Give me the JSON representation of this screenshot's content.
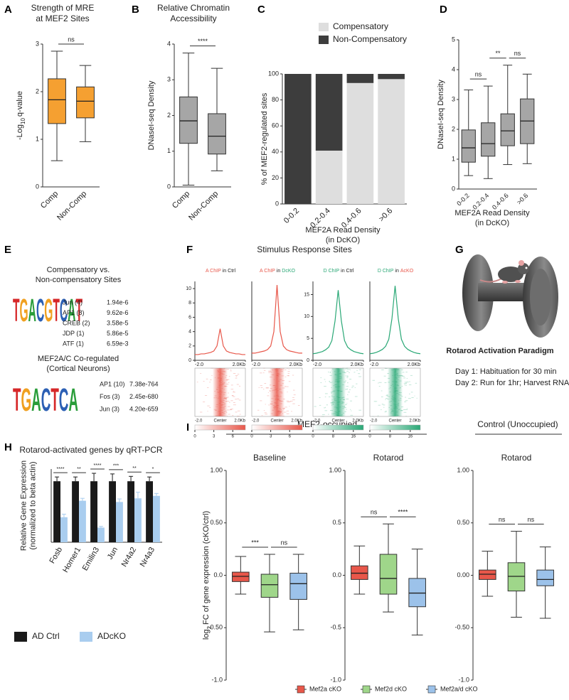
{
  "chart_data": [
    {
      "type": "box",
      "label": "A",
      "title": [
        "Strength of MRE",
        "at MEF2 Sites"
      ],
      "ylabel": [
        [
          {
            "text": "-Log"
          },
          {
            "text": "10",
            "sub": true
          },
          {
            "text": "q-value"
          }
        ]
      ],
      "categories": [
        "Comp",
        "Non-Comp"
      ],
      "boxes": [
        {
          "min": 0.55,
          "q1": 1.33,
          "median": 1.83,
          "q3": 2.27,
          "max": 2.85
        },
        {
          "min": 0.95,
          "q1": 1.45,
          "median": 1.8,
          "q3": 2.1,
          "max": 2.55
        }
      ],
      "color": "#f5a031",
      "ylim": [
        0,
        3
      ],
      "yticks": [
        0,
        1,
        2,
        3
      ],
      "comparisons": [
        "ns"
      ]
    },
    {
      "type": "box",
      "label": "B",
      "title": [
        "Relative Chromatin",
        "Accessibility"
      ],
      "ylabel": [
        "DNaseI-seq Density"
      ],
      "categories": [
        "Comp",
        "Non-Comp"
      ],
      "boxes": [
        {
          "min": 0.05,
          "q1": 1.22,
          "median": 1.85,
          "q3": 2.52,
          "max": 3.75
        },
        {
          "min": 0.45,
          "q1": 0.92,
          "median": 1.42,
          "q3": 2.05,
          "max": 3.32
        }
      ],
      "color": "#a6a6a6",
      "ylim": [
        0,
        4
      ],
      "yticks": [
        0,
        1,
        2,
        3,
        4
      ],
      "comparisons": [
        "****"
      ]
    },
    {
      "type": "stacked_bar",
      "label": "C",
      "ylabel": [
        "% of MEF2-regulated sites"
      ],
      "xlabel": [
        "MEF2A Read Density",
        "(in DcKO)"
      ],
      "categories": [
        "0-0.2",
        "0.2-0.4",
        "0.4-0.6",
        ">0.6"
      ],
      "series": [
        {
          "name": "Compensatory",
          "color": "#dedede",
          "values": [
            0,
            41,
            93,
            96
          ]
        },
        {
          "name": "Non-Compensatory",
          "color": "#3d3d3d",
          "values": [
            100,
            59,
            7,
            4
          ]
        }
      ],
      "ylim": [
        0,
        100
      ],
      "yticks": [
        0,
        20,
        40,
        60,
        80,
        100
      ]
    },
    {
      "type": "box",
      "label": "D",
      "ylabel": [
        "DNaseI-seq Density"
      ],
      "xlabel": [
        "MEF2A Read Density",
        "(in DcKO)"
      ],
      "categories": [
        "0-0.2",
        "0.2-0.4",
        "0.4-0.6",
        ">0.6"
      ],
      "boxes": [
        {
          "min": 0.45,
          "q1": 0.9,
          "median": 1.38,
          "q3": 1.98,
          "max": 3.32
        },
        {
          "min": 0.35,
          "q1": 1.1,
          "median": 1.52,
          "q3": 2.22,
          "max": 3.45
        },
        {
          "min": 0.82,
          "q1": 1.45,
          "median": 1.95,
          "q3": 2.52,
          "max": 4.15
        },
        {
          "min": 0.85,
          "q1": 1.52,
          "median": 2.28,
          "q3": 3.02,
          "max": 3.85
        }
      ],
      "color": "#a6a6a6",
      "ylim": [
        0,
        5
      ],
      "yticks": [
        0,
        1,
        2,
        3,
        4,
        5
      ],
      "comparisons": [
        "ns",
        "**",
        "ns"
      ]
    },
    {
      "type": "bar",
      "label": "H",
      "title": [
        "Rotarod-activated genes by qRT-PCR"
      ],
      "ylabel": [
        "Relative Gene Expression",
        "(normalized to beta actin)"
      ],
      "categories": [
        "Fosb",
        "Homer1",
        "Emilin3",
        "Jun",
        "Nr4a2",
        "Nr4a3"
      ],
      "series": [
        {
          "name": "AD Ctrl",
          "color": "#1a1a1a",
          "values": [
            1,
            1,
            1,
            1,
            1,
            1
          ],
          "errors": [
            0.07,
            0.07,
            0.13,
            0.12,
            0.08,
            0.07
          ]
        },
        {
          "name": "ADcKO",
          "color": "#a9cdef",
          "values": [
            0.41,
            0.68,
            0.24,
            0.66,
            0.72,
            0.76
          ],
          "errors": [
            0.05,
            0.04,
            0.02,
            0.05,
            0.1,
            0.04
          ]
        }
      ],
      "ylim": [
        0,
        1.2
      ],
      "significance": [
        "****",
        "**",
        "****",
        "***",
        "**",
        "*"
      ]
    },
    {
      "type": "box",
      "title": [
        "Baseline"
      ],
      "ylabel": [
        [
          {
            "text": "log"
          },
          {
            "text": "2",
            "sub": true
          },
          {
            "text": "FC of gene expression (cKO/ctrl)"
          }
        ]
      ],
      "boxes": [
        {
          "min": -0.18,
          "q1": -0.06,
          "median": -0.01,
          "q3": 0.03,
          "max": 0.18
        },
        {
          "min": -0.54,
          "q1": -0.21,
          "median": -0.09,
          "q3": 0.01,
          "max": 0.2
        },
        {
          "min": -0.52,
          "q1": -0.23,
          "median": -0.08,
          "q3": 0.02,
          "max": 0.2
        }
      ],
      "ylim": [
        -1,
        1
      ],
      "yticks": [
        {
          "value": 1,
          "label": "1.00"
        },
        {
          "value": 0.5,
          "label": "0.50"
        },
        {
          "value": 0,
          "label": "0.0"
        },
        {
          "value": -0.5,
          "label": "-0.50"
        },
        {
          "value": -1,
          "label": "-1.0"
        }
      ],
      "comparisons": [
        "***",
        "ns"
      ]
    },
    {
      "type": "box",
      "title": [
        "Rotarod"
      ],
      "boxes": [
        {
          "min": -0.18,
          "q1": -0.04,
          "median": 0.02,
          "q3": 0.09,
          "max": 0.28
        },
        {
          "min": -0.35,
          "q1": -0.18,
          "median": -0.03,
          "q3": 0.2,
          "max": 0.49
        },
        {
          "min": -0.57,
          "q1": -0.3,
          "median": -0.17,
          "q3": -0.03,
          "max": 0.25
        }
      ],
      "ylim": [
        -1,
        1
      ],
      "yticks": [
        {
          "value": 1,
          "label": "1.00"
        },
        0.5,
        {
          "value": 0,
          "label": "0.0"
        },
        -0.5,
        {
          "value": -1,
          "label": "-1.0"
        }
      ],
      "comparisons": [
        "ns",
        "****"
      ]
    },
    {
      "type": "box",
      "title": [
        "Rotarod"
      ],
      "boxes": [
        {
          "min": -0.2,
          "q1": -0.04,
          "median": 0.01,
          "q3": 0.05,
          "max": 0.23
        },
        {
          "min": -0.4,
          "q1": -0.15,
          "median": -0.01,
          "q3": 0.12,
          "max": 0.42
        },
        {
          "min": -0.41,
          "q1": -0.1,
          "median": -0.04,
          "q3": 0.05,
          "max": 0.27
        }
      ],
      "ylim": [
        -1,
        1
      ],
      "yticks": [
        {
          "value": 1,
          "label": "1.00"
        },
        {
          "value": 0.5,
          "label": "0.50"
        },
        {
          "value": 0,
          "label": "0.00"
        },
        {
          "value": -0.5,
          "label": "-0.50"
        },
        {
          "value": -1,
          "label": "-1.0"
        }
      ],
      "comparisons": [
        "ns",
        "ns"
      ]
    },
    {
      "type": "line",
      "title": [
        {
          "text": "A ChIP",
          "color": "#e8574a"
        },
        {
          "text": "in Ctrl"
        }
      ],
      "x": [
        -2,
        -1.75,
        -1.5,
        -1.25,
        -1,
        -0.75,
        -0.5,
        -0.25,
        0,
        0.25,
        0.5,
        0.75,
        1,
        1.25,
        1.5,
        1.75,
        2
      ],
      "values": [
        0.8,
        0.8,
        0.9,
        0.9,
        1.0,
        1.1,
        1.3,
        2.0,
        4.4,
        2.0,
        1.3,
        1.1,
        1.0,
        0.9,
        0.9,
        0.8,
        0.8
      ],
      "color": "#e8574a",
      "xlim": [
        -2,
        2
      ],
      "xticks": [
        {
          "value": -2,
          "label": "-2.0"
        },
        {
          "value": 2,
          "label": "2.0Kb"
        }
      ],
      "ylim": [
        0,
        11
      ],
      "yticks": [
        0,
        2,
        4,
        6,
        8,
        10
      ]
    },
    {
      "type": "line",
      "title": [
        {
          "text": "A ChIP",
          "color": "#e8574a"
        },
        {
          "text": "in"
        },
        {
          "text": "DcKO",
          "color": "#2aa876"
        }
      ],
      "x": [
        -2,
        -1.75,
        -1.5,
        -1.25,
        -1,
        -0.75,
        -0.5,
        -0.25,
        0,
        0.25,
        0.5,
        0.75,
        1,
        1.25,
        1.5,
        1.75,
        2
      ],
      "values": [
        1.0,
        1.0,
        1.1,
        1.2,
        1.3,
        1.5,
        2.0,
        4.0,
        10.5,
        4.0,
        2.0,
        1.5,
        1.3,
        1.2,
        1.1,
        1.0,
        1.0
      ],
      "color": "#e8574a",
      "xlim": [
        -2,
        2
      ],
      "xticks": [
        {
          "value": -2,
          "label": "-2.0"
        },
        {
          "value": 2,
          "label": "2.0Kb"
        }
      ],
      "ylim": [
        0,
        11
      ]
    },
    {
      "type": "line",
      "title": [
        {
          "text": "D ChIP",
          "color": "#2aa876"
        },
        {
          "text": "in Ctrl"
        }
      ],
      "x": [
        -2,
        -1.75,
        -1.5,
        -1.25,
        -1,
        -0.75,
        -0.5,
        -0.25,
        0,
        0.25,
        0.5,
        0.75,
        1,
        1.25,
        1.5,
        1.75,
        2
      ],
      "values": [
        1.5,
        1.6,
        1.8,
        2.0,
        2.4,
        3.0,
        4.5,
        9.0,
        16.0,
        9.0,
        4.5,
        3.0,
        2.4,
        2.0,
        1.8,
        1.6,
        1.5
      ],
      "color": "#2aa876",
      "xlim": [
        -2,
        2
      ],
      "xticks": [
        {
          "value": -2,
          "label": "-2.0"
        },
        {
          "value": 2,
          "label": "2.0Kb"
        }
      ],
      "ylim": [
        0,
        18
      ],
      "yticks": [
        0,
        5,
        10,
        15
      ]
    },
    {
      "type": "line",
      "title": [
        {
          "text": "D ChIP",
          "color": "#2aa876"
        },
        {
          "text": "in"
        },
        {
          "text": "AcKO",
          "color": "#e8574a"
        }
      ],
      "x": [
        -2,
        -1.75,
        -1.5,
        -1.25,
        -1,
        -0.75,
        -0.5,
        -0.25,
        0,
        0.25,
        0.5,
        0.75,
        1,
        1.25,
        1.5,
        1.75,
        2
      ],
      "values": [
        1.5,
        1.6,
        1.8,
        2.1,
        2.5,
        3.2,
        4.8,
        9.5,
        17.0,
        9.5,
        4.8,
        3.2,
        2.5,
        2.1,
        1.8,
        1.6,
        1.5
      ],
      "color": "#2aa876",
      "xlim": [
        -2,
        2
      ],
      "xticks": [
        {
          "value": -2,
          "label": "-2.0"
        },
        {
          "value": 2,
          "label": "2.0Kb"
        }
      ],
      "ylim": [
        0,
        18
      ]
    }
  ],
  "panel_E": {
    "label": "E",
    "blocks": [
      {
        "title": [
          "Compensatory vs.",
          "Non-compensatory Sites"
        ],
        "logo": "TGACGTCAT",
        "rows": [
          [
            "Jun (4)",
            "1.94e-6"
          ],
          [
            "AP1 (8)",
            "9.62e-6"
          ],
          [
            "CREB (2)",
            "3.58e-5"
          ],
          [
            "JDP (1)",
            "5.86e-5"
          ],
          [
            "ATF (1)",
            "6.59e-3"
          ]
        ]
      },
      {
        "title": [
          "MEF2A/C Co-regulated",
          "(Cortical Neurons)"
        ],
        "logo": "TGACTCA",
        "rows": [
          [
            "AP1 (10)",
            "7.38e-764"
          ],
          [
            "Fos (3)",
            "2.45e-680"
          ],
          [
            "Jun (3)",
            "4.20e-659"
          ]
        ]
      }
    ]
  },
  "panel_F": {
    "label": "F",
    "title": "Stimulus Response Sites",
    "heatmaps": [
      {
        "xlim": [
          -2,
          2
        ],
        "xticks": [
          {
            "value": -2,
            "label": "-2.0"
          },
          {
            "value": 0,
            "label": "Center"
          },
          {
            "value": 2,
            "label": "2.0Kb"
          }
        ],
        "colorbar": {
          "color": "#e8574a",
          "lim": [
            0,
            8
          ],
          "ticks": [
            0,
            3,
            6
          ]
        }
      },
      {
        "xlim": [
          -2,
          2
        ],
        "xticks": [
          {
            "value": -2,
            "label": "-2.0"
          },
          {
            "value": 0,
            "label": "Center"
          },
          {
            "value": 2,
            "label": "2.0Kb"
          }
        ],
        "colorbar": {
          "color": "#e8574a",
          "lim": [
            0,
            8
          ],
          "ticks": [
            0,
            3,
            6
          ]
        }
      },
      {
        "xlim": [
          -2,
          2
        ],
        "xticks": [
          {
            "value": -2,
            "label": "-2.0"
          },
          {
            "value": 0,
            "label": "Center"
          },
          {
            "value": 2,
            "label": "2.0Kb"
          }
        ],
        "colorbar": {
          "color": "#2aa876",
          "lim": [
            0,
            20
          ],
          "ticks": [
            0,
            8,
            16
          ]
        }
      },
      {
        "xlim": [
          -2,
          2
        ],
        "xticks": [
          {
            "value": -2,
            "label": "-2.0"
          },
          {
            "value": 0,
            "label": "Center"
          },
          {
            "value": 2,
            "label": "2.0Kb"
          }
        ],
        "colorbar": {
          "color": "#2aa876",
          "lim": [
            0,
            20
          ],
          "ticks": [
            0,
            8,
            16
          ]
        }
      }
    ]
  },
  "panel_G": {
    "label": "G",
    "title": "Rotarod Activation Paradigm",
    "lines": [
      "Day 1: Habituation for 30 min",
      "Day 2: Run for 1hr; Harvest RNA"
    ]
  },
  "panel_I": {
    "label": "I",
    "groups": [
      "MEF2-occupied",
      "Control (Unoccupied)"
    ],
    "legend": [
      {
        "name": "Mef2a cKO",
        "color": "#e8574a"
      },
      {
        "name": "Mef2d cKO",
        "color": "#9fd68a"
      },
      {
        "name": "Mef2a/d cKO",
        "color": "#9cc2ea"
      }
    ]
  }
}
